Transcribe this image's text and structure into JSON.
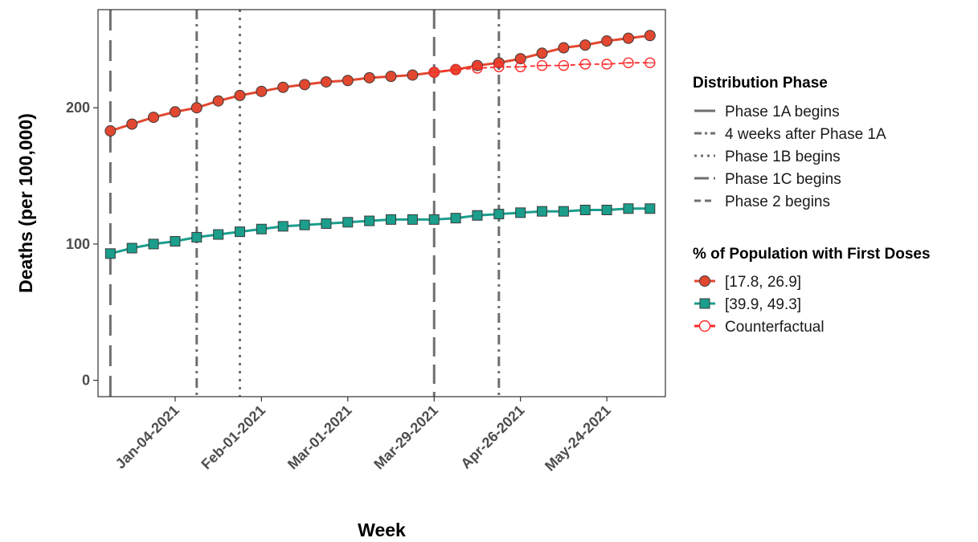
{
  "chart_data": {
    "type": "line",
    "xlabel": "Week",
    "ylabel": "Deaths (per 100,000)",
    "x": [
      "2020-12-14",
      "2020-12-21",
      "2020-12-28",
      "2021-01-04",
      "2021-01-11",
      "2021-01-18",
      "2021-01-25",
      "2021-02-01",
      "2021-02-08",
      "2021-02-15",
      "2021-02-22",
      "2021-03-01",
      "2021-03-08",
      "2021-03-15",
      "2021-03-22",
      "2021-03-29",
      "2021-04-05",
      "2021-04-12",
      "2021-04-19",
      "2021-04-26",
      "2021-05-03",
      "2021-05-10",
      "2021-05-17",
      "2021-05-24",
      "2021-05-31",
      "2021-06-07"
    ],
    "xlim": [
      "2020-12-10",
      "2021-06-12"
    ],
    "x_ticks": [
      "2021-01-04",
      "2021-02-01",
      "2021-03-01",
      "2021-03-29",
      "2021-04-26",
      "2021-05-24"
    ],
    "x_tick_labels": [
      "Jan-04-2021",
      "Feb-01-2021",
      "Mar-01-2021",
      "Mar-29-2021",
      "Apr-26-2021",
      "May-24-2021"
    ],
    "ylim": [
      -12,
      272
    ],
    "y_ticks": [
      0,
      100,
      200
    ],
    "y_tick_labels": [
      "0",
      "100",
      "200"
    ],
    "grid": false,
    "legend_position": "right",
    "series": [
      {
        "name": "[17.8, 26.9]",
        "color": "#e2472f",
        "marker": "circle",
        "line": "solid",
        "values": [
          183,
          188,
          193,
          197,
          200,
          205,
          209,
          212,
          215,
          217,
          219,
          220,
          222,
          223,
          224,
          226,
          228,
          231,
          233,
          236,
          240,
          244,
          246,
          249,
          251,
          253
        ]
      },
      {
        "name": "[39.9, 49.3]",
        "color": "#1b9e8c",
        "marker": "square",
        "line": "solid",
        "values": [
          93,
          97,
          100,
          102,
          105,
          107,
          109,
          111,
          113,
          114,
          115,
          116,
          117,
          118,
          118,
          118,
          119,
          121,
          122,
          123,
          124,
          124,
          125,
          125,
          126,
          126
        ]
      },
      {
        "name": "Counterfactual",
        "color": "#ff2a2a",
        "marker": "open-circle",
        "line": "dashed",
        "x": [
          "2021-03-29",
          "2021-04-05",
          "2021-04-12",
          "2021-04-19",
          "2021-04-26",
          "2021-05-03",
          "2021-05-10",
          "2021-05-17",
          "2021-05-24",
          "2021-05-31",
          "2021-06-07"
        ],
        "values": [
          226,
          228,
          229,
          230,
          230,
          231,
          231,
          232,
          232,
          233,
          233
        ]
      }
    ],
    "vlines": [
      {
        "name": "Phase 1A begins",
        "x": "2020-12-14",
        "dash": "26,12"
      },
      {
        "name": "4 weeks after Phase 1A",
        "x": "2021-01-11",
        "dash": "12,6,3,6"
      },
      {
        "name": "Phase 1B begins",
        "x": "2021-01-25",
        "dash": "3,7"
      },
      {
        "name": "Phase 1C begins",
        "x": "2021-03-29",
        "dash": "24,10"
      },
      {
        "name": "Phase 2 begins",
        "x": "2021-04-19",
        "dash": "12,6,3,6"
      }
    ],
    "legend_phase": {
      "title": "Distribution Phase",
      "items": [
        {
          "label": "Phase 1A begins",
          "dash": "26,12"
        },
        {
          "label": "4 weeks after Phase 1A",
          "dash": "9,4,3,4"
        },
        {
          "label": "Phase 1B begins",
          "dash": "3,5"
        },
        {
          "label": "Phase 1C begins",
          "dash": "18,6"
        },
        {
          "label": "Phase 2 begins",
          "dash": "8,5"
        }
      ]
    },
    "legend_pop": {
      "title": "% of Population with First Doses",
      "items": [
        "[17.8, 26.9]",
        "[39.9, 49.3]",
        "Counterfactual"
      ]
    }
  }
}
